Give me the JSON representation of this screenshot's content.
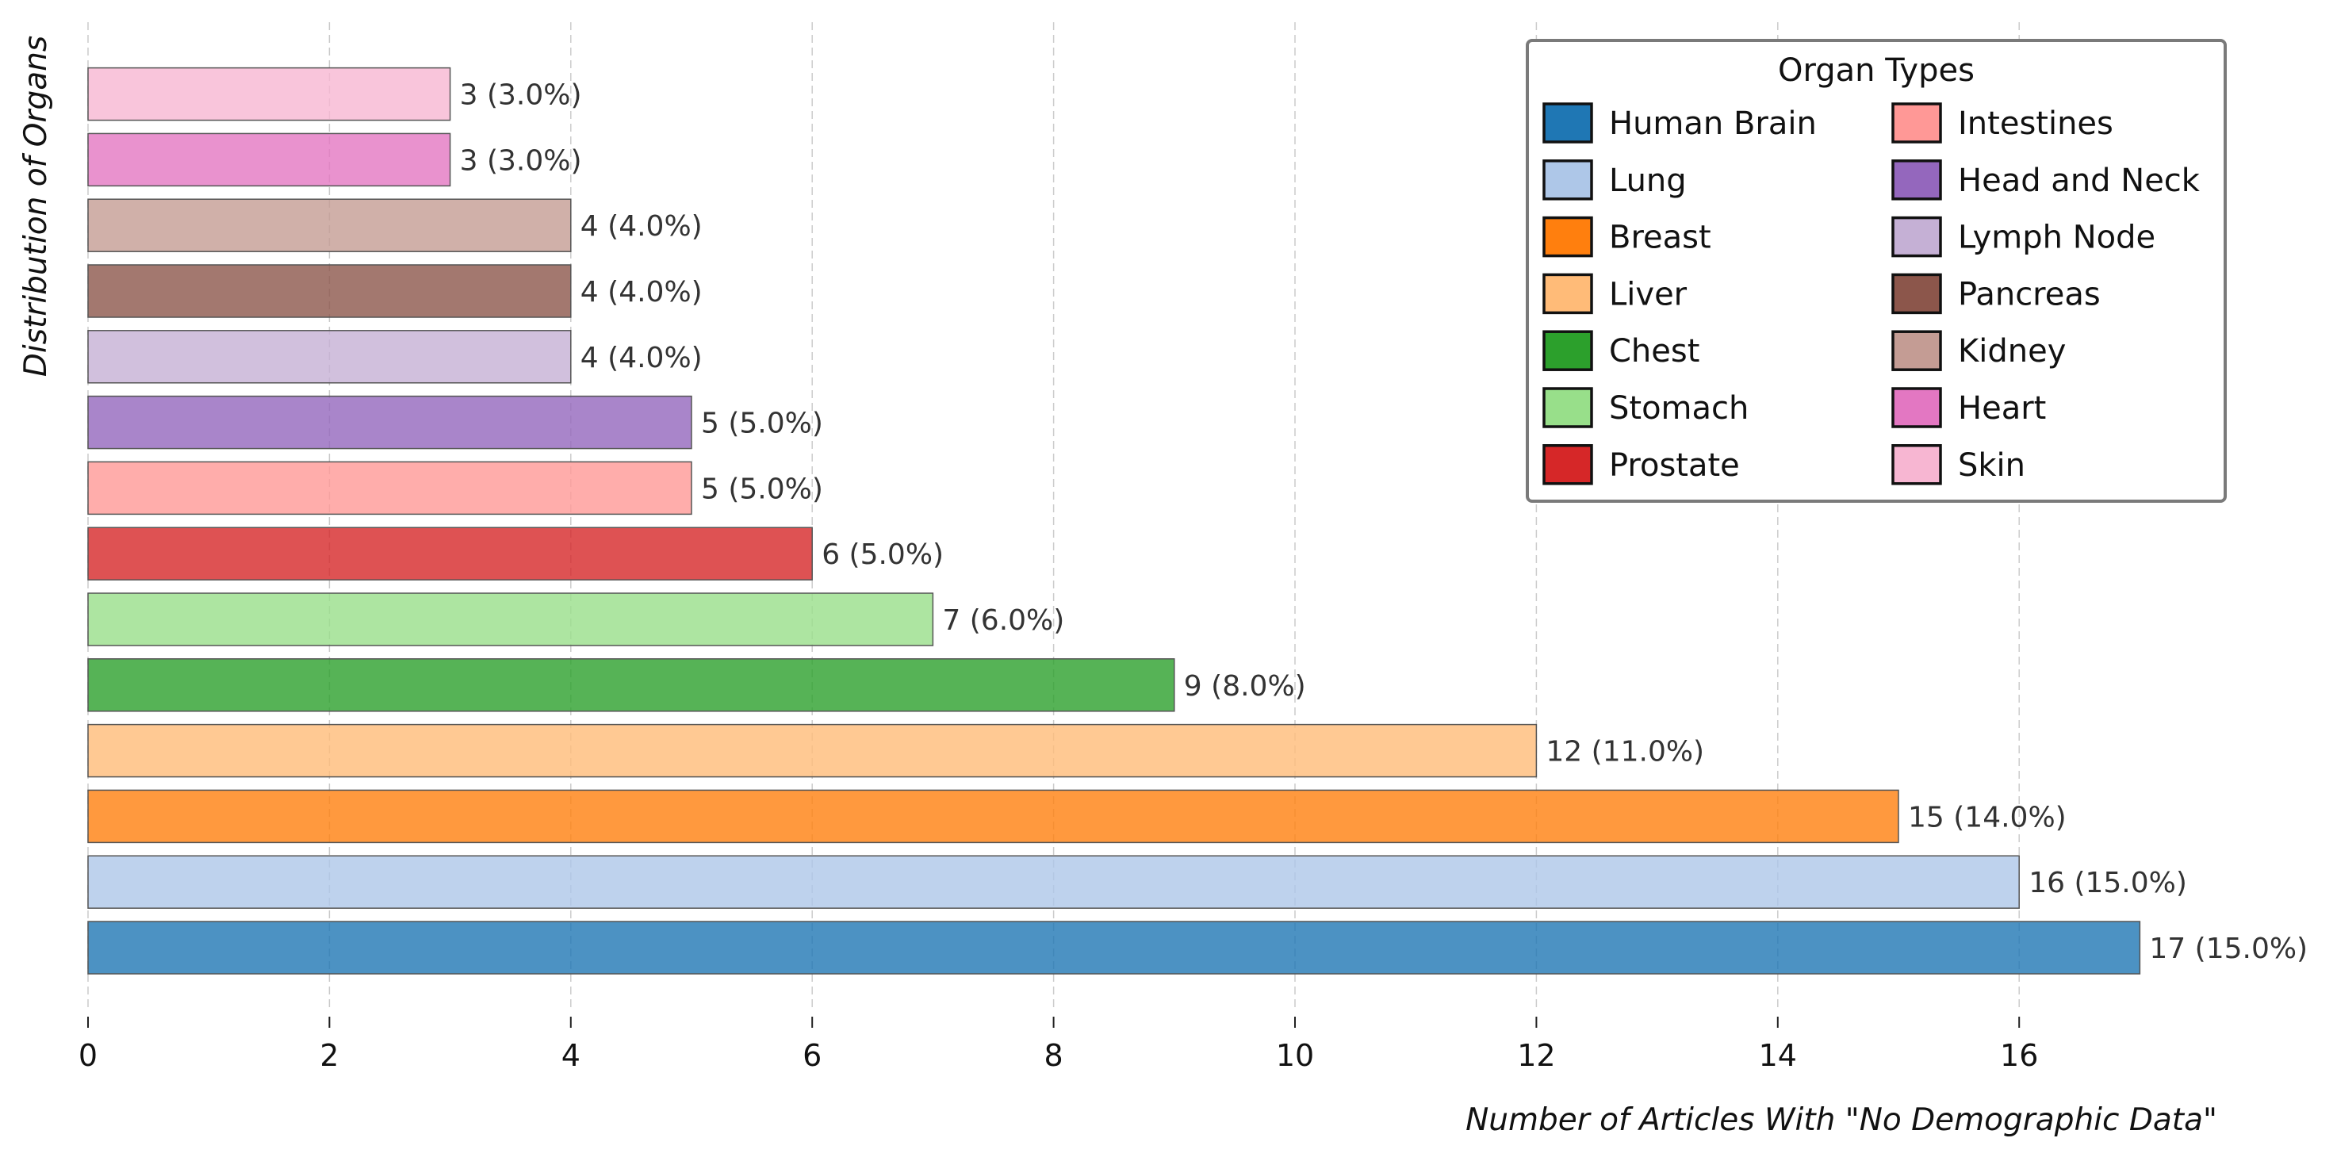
{
  "chart_data": {
    "type": "bar",
    "orientation": "horizontal",
    "xlabel": "Number of Articles With \"No Demographic Data\"",
    "ylabel": "Distribution of Organs",
    "xlim": [
      0,
      17.6
    ],
    "xticks": [
      0,
      2,
      4,
      6,
      8,
      10,
      12,
      14,
      16
    ],
    "grid": "vertical dashed",
    "legend": {
      "title": "Organ Types",
      "placement": "top-right",
      "columns": 2
    },
    "categories": [
      "Human Brain",
      "Lung",
      "Breast",
      "Liver",
      "Chest",
      "Stomach",
      "Prostate",
      "Intestines",
      "Head and Neck",
      "Lymph Node",
      "Pancreas",
      "Kidney",
      "Heart",
      "Skin"
    ],
    "values": [
      17,
      16,
      15,
      12,
      9,
      7,
      6,
      5,
      5,
      4,
      4,
      4,
      3,
      3
    ],
    "labels": [
      "17 (15.0%)",
      "16 (15.0%)",
      "15 (14.0%)",
      "12 (11.0%)",
      "9 (8.0%)",
      "7 (6.0%)",
      "6 (5.0%)",
      "5 (5.0%)",
      "5 (5.0%)",
      "4 (4.0%)",
      "4 (4.0%)",
      "4 (4.0%)",
      "3 (3.0%)",
      "3 (3.0%)"
    ],
    "colors": [
      "#1f77b4",
      "#aec7e8",
      "#ff7f0e",
      "#ffbb78",
      "#2ca02c",
      "#98df8a",
      "#d62728",
      "#ff9896",
      "#9467bd",
      "#c5b0d5",
      "#8c564b",
      "#c49c94",
      "#e377c2",
      "#f7b6d2"
    ]
  }
}
